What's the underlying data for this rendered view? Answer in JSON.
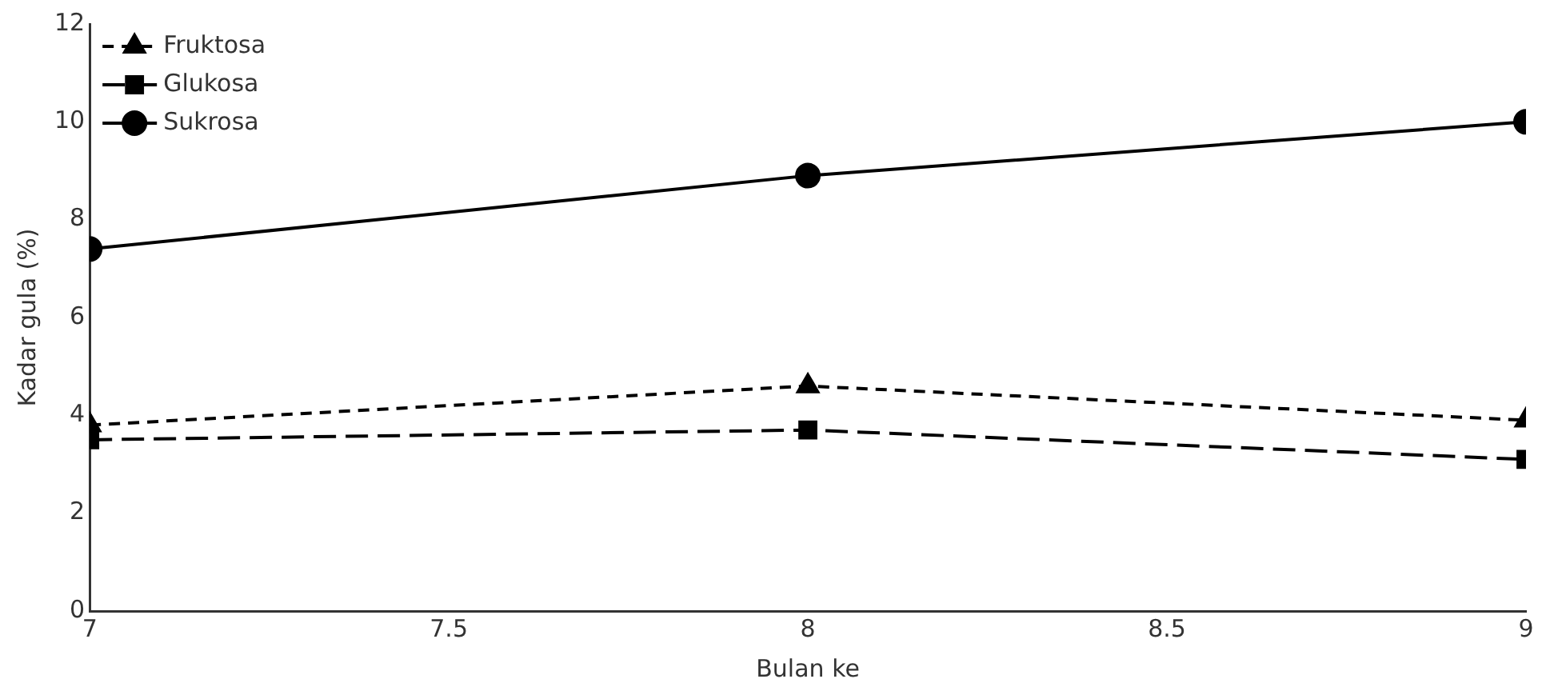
{
  "chart_data": {
    "type": "line",
    "xlabel": "Bulan ke",
    "ylabel": "Kadar gula (%)",
    "x": [
      7,
      8,
      9
    ],
    "xlim": [
      7,
      9
    ],
    "xticks": [
      7,
      7.5,
      8,
      8.5,
      9
    ],
    "ylim": [
      0,
      12
    ],
    "yticks": [
      0,
      2,
      4,
      6,
      8,
      10,
      12
    ],
    "grid": false,
    "legend": "top left",
    "series": [
      {
        "name": "Fruktosa",
        "color": "#000000",
        "marker": "triangle",
        "line_style": "dotted",
        "values": [
          3.8,
          4.6,
          3.9
        ]
      },
      {
        "name": "Glukosa",
        "color": "#000000",
        "marker": "square",
        "line_style": "dashed",
        "values": [
          3.5,
          3.7,
          3.1
        ]
      },
      {
        "name": "Sukrosa",
        "color": "#000000",
        "marker": "circle",
        "line_style": "solid",
        "values": [
          7.4,
          8.9,
          10.0
        ]
      }
    ]
  }
}
